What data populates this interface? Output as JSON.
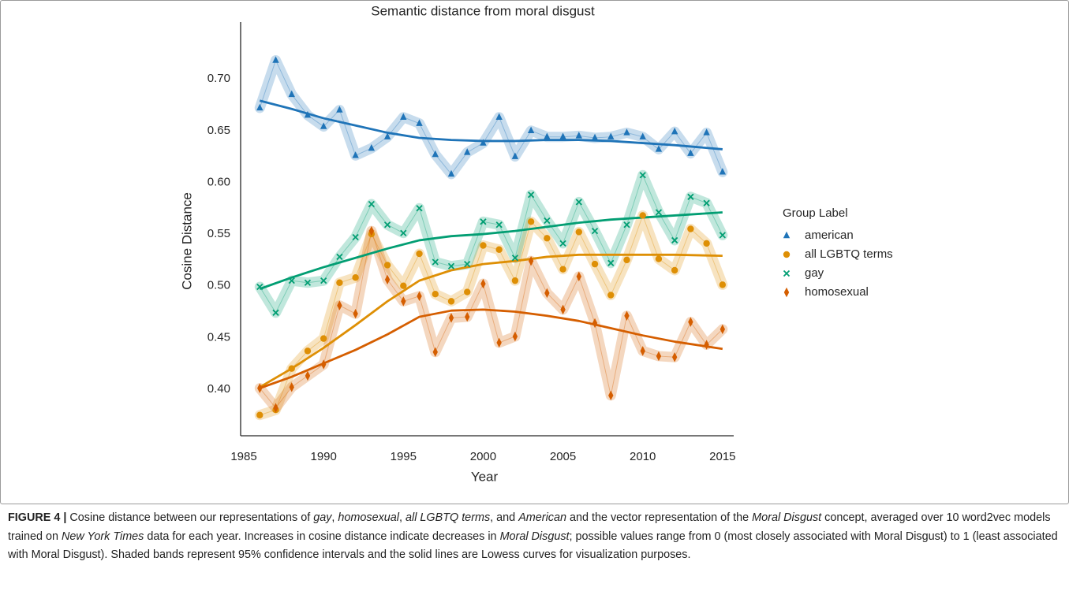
{
  "chart_data": {
    "type": "scatter",
    "title": "Semantic distance from moral disgust",
    "xlabel": "Year",
    "ylabel": "Cosine Distance",
    "legend_title": "Group Label",
    "legend": "right",
    "xlim": [
      1984.8,
      2015.7
    ],
    "ylim": [
      0.355,
      0.755
    ],
    "xticks": [
      1985,
      1990,
      1995,
      2000,
      2005,
      2010,
      2015
    ],
    "yticks": [
      {
        "value": 0.4,
        "label": "0.40"
      },
      0.45,
      {
        "value": 0.5,
        "label": "0.50"
      },
      0.55,
      {
        "value": 0.6,
        "label": "0.60"
      },
      0.65,
      {
        "value": 0.7,
        "label": "0.70"
      }
    ],
    "x": [
      1986,
      1987,
      1988,
      1989,
      1990,
      1991,
      1992,
      1993,
      1994,
      1995,
      1996,
      1997,
      1998,
      1999,
      2000,
      2001,
      2002,
      2003,
      2004,
      2005,
      2006,
      2007,
      2008,
      2009,
      2010,
      2011,
      2012,
      2013,
      2014,
      2015
    ],
    "trend_x": [
      1986,
      1988,
      1990,
      1992,
      1994,
      1996,
      1998,
      2000,
      2002,
      2004,
      2006,
      2008,
      2010,
      2012,
      2015
    ],
    "series": [
      {
        "name": "american",
        "color": "#1f74b8",
        "marker": "triangle",
        "values": [
          0.672,
          0.718,
          0.685,
          0.665,
          0.654,
          0.67,
          0.626,
          0.633,
          0.644,
          0.663,
          0.657,
          0.627,
          0.608,
          0.629,
          0.638,
          0.663,
          0.625,
          0.65,
          0.644,
          0.644,
          0.645,
          0.643,
          0.644,
          0.648,
          0.644,
          0.632,
          0.649,
          0.628,
          0.648,
          0.61
        ],
        "trend": [
          0.679,
          0.671,
          0.662,
          0.655,
          0.648,
          0.643,
          0.641,
          0.64,
          0.64,
          0.641,
          0.641,
          0.64,
          0.638,
          0.636,
          0.632
        ]
      },
      {
        "name": "all LGBTQ terms",
        "color": "#de8f05",
        "marker": "circle",
        "values": [
          0.375,
          0.38,
          0.42,
          0.437,
          0.449,
          0.503,
          0.508,
          0.55,
          0.52,
          0.5,
          0.531,
          0.492,
          0.485,
          0.494,
          0.539,
          0.535,
          0.505,
          0.562,
          0.546,
          0.516,
          0.552,
          0.521,
          0.491,
          0.525,
          0.568,
          0.526,
          0.515,
          0.555,
          0.541,
          0.501
        ],
        "trend": [
          0.402,
          0.42,
          0.44,
          0.462,
          0.485,
          0.505,
          0.515,
          0.521,
          0.524,
          0.528,
          0.53,
          0.53,
          0.53,
          0.53,
          0.529
        ]
      },
      {
        "name": "gay",
        "color": "#029e73",
        "marker": "x",
        "values": [
          0.499,
          0.474,
          0.505,
          0.503,
          0.505,
          0.528,
          0.547,
          0.579,
          0.559,
          0.551,
          0.575,
          0.523,
          0.519,
          0.521,
          0.562,
          0.559,
          0.527,
          0.588,
          0.563,
          0.541,
          0.581,
          0.553,
          0.522,
          0.559,
          0.607,
          0.571,
          0.544,
          0.586,
          0.58,
          0.549
        ],
        "trend": [
          0.497,
          0.508,
          0.518,
          0.527,
          0.536,
          0.544,
          0.548,
          0.55,
          0.553,
          0.557,
          0.561,
          0.564,
          0.566,
          0.568,
          0.571
        ]
      },
      {
        "name": "homosexual",
        "color": "#d55e00",
        "marker": "diamond",
        "values": [
          0.401,
          0.382,
          0.402,
          0.413,
          0.424,
          0.481,
          0.473,
          0.553,
          0.506,
          0.485,
          0.49,
          0.436,
          0.469,
          0.47,
          0.502,
          0.445,
          0.451,
          0.524,
          0.493,
          0.477,
          0.509,
          0.464,
          0.394,
          0.471,
          0.437,
          0.432,
          0.431,
          0.465,
          0.443,
          0.458
        ],
        "trend": [
          0.401,
          0.412,
          0.425,
          0.438,
          0.453,
          0.47,
          0.476,
          0.477,
          0.475,
          0.471,
          0.466,
          0.459,
          0.452,
          0.446,
          0.439
        ]
      }
    ]
  },
  "caption": {
    "label": "FIGURE 4 |",
    "segments": [
      {
        "text": " Cosine distance between our representations of ",
        "italic": false
      },
      {
        "text": "gay",
        "italic": true
      },
      {
        "text": ", ",
        "italic": false
      },
      {
        "text": "homosexual",
        "italic": true
      },
      {
        "text": ", ",
        "italic": false
      },
      {
        "text": "all LGBTQ terms",
        "italic": true
      },
      {
        "text": ", and ",
        "italic": false
      },
      {
        "text": "American",
        "italic": true
      },
      {
        "text": " and the vector representation of the ",
        "italic": false
      },
      {
        "text": "Moral Disgust",
        "italic": true
      },
      {
        "text": " concept, averaged over 10 word2vec models trained on ",
        "italic": false
      },
      {
        "text": "New York Times",
        "italic": true
      },
      {
        "text": " data for each year. Increases in cosine distance indicate decreases in ",
        "italic": false
      },
      {
        "text": "Moral Disgust",
        "italic": true
      },
      {
        "text": "; possible values range from 0 (most closely associated with Moral Disgust) to 1 (least associated with Moral Disgust). Shaded bands represent 95% confidence intervals and the solid lines are Lowess curves for visualization purposes.",
        "italic": false
      }
    ]
  }
}
